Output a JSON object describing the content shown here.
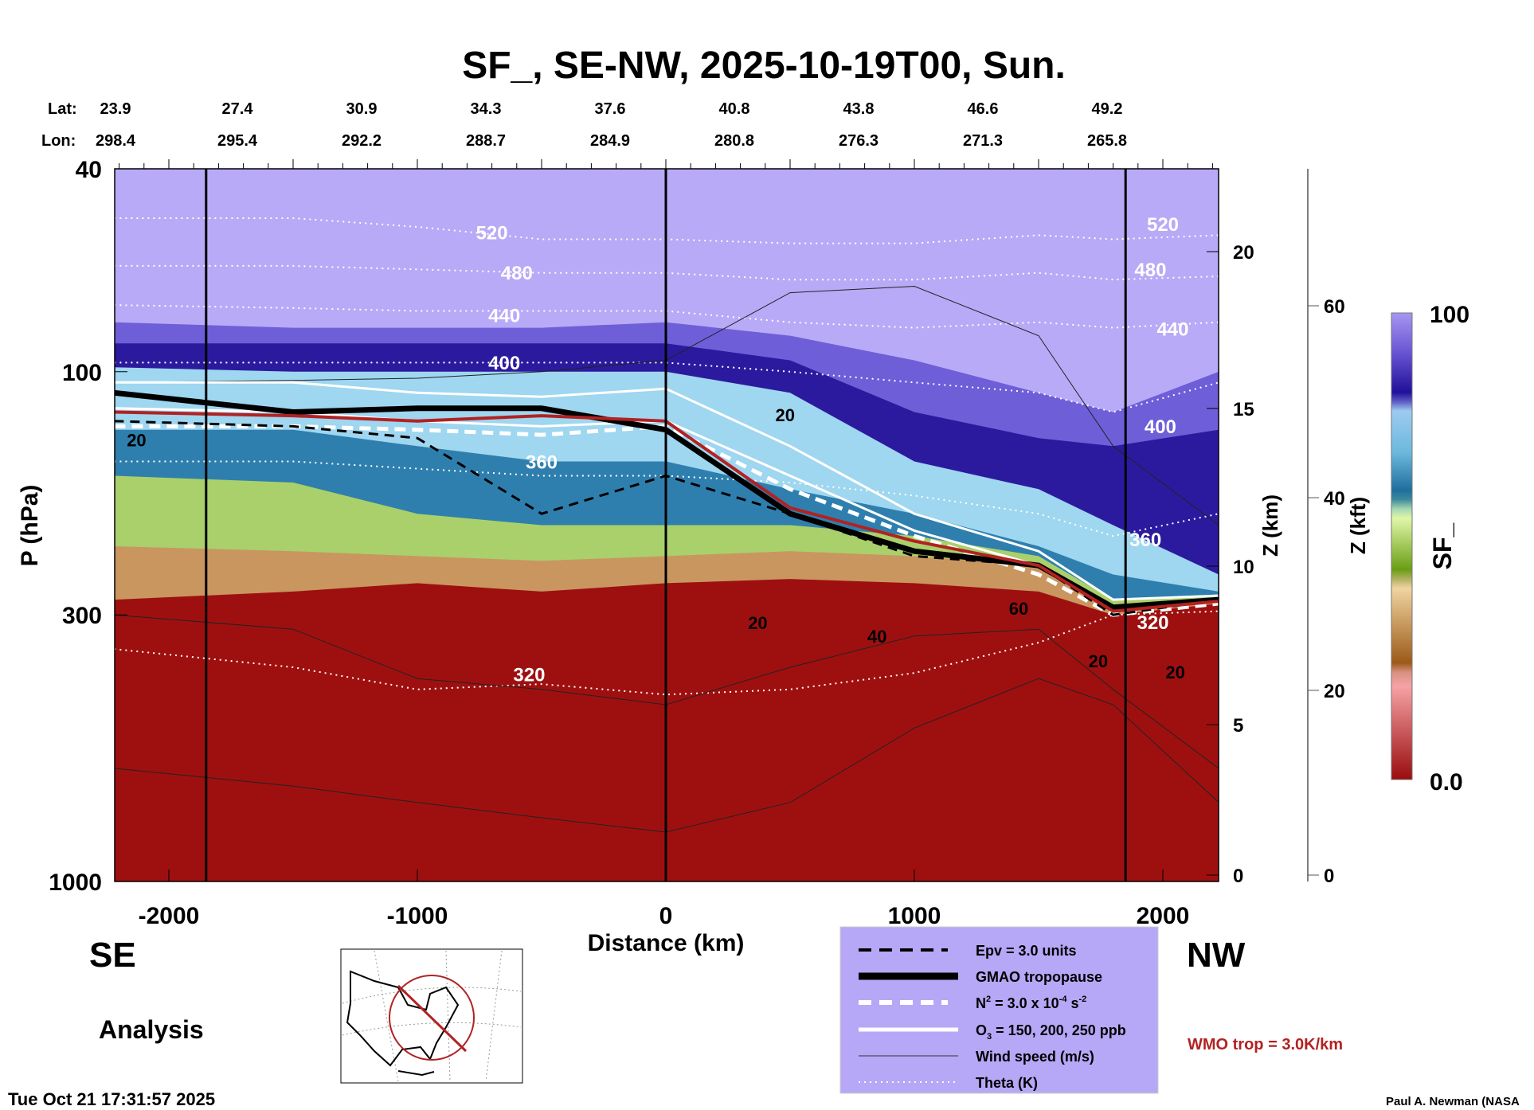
{
  "chart_data": {
    "type": "heatmap",
    "title": "SF_, SE-NW, 2025-10-19T00, Sun.",
    "xlabel": "Distance (km)",
    "ylabel": "P (hPa)",
    "y2label": "Z (km)",
    "y3label": "Z (kft)",
    "colorbar_label": "SF_",
    "colorbar_range": [
      "0.0",
      "100"
    ],
    "xlim": [
      -2220,
      2225
    ],
    "ylim": [
      1000,
      40
    ],
    "x_ticks": [
      "-2000",
      "-1000",
      "0",
      "1000",
      "2000"
    ],
    "x_tick_values": [
      -2000,
      -1000,
      0,
      1000,
      2000
    ],
    "p_ticks": [
      "40",
      "100",
      "300",
      "1000"
    ],
    "p_tick_values": [
      40,
      100,
      300,
      1000
    ],
    "zkm_ticks": [
      "0",
      "5",
      "10",
      "15",
      "20"
    ],
    "zkft_ticks": [
      "0",
      "20",
      "40",
      "60"
    ],
    "lat_label": "Lat:",
    "lon_label": "Lon:",
    "lat": [
      "23.9",
      "27.4",
      "30.9",
      "34.3",
      "37.6",
      "40.8",
      "43.8",
      "46.6",
      "49.2"
    ],
    "lon": [
      "298.4",
      "295.4",
      "292.2",
      "288.7",
      "284.9",
      "280.8",
      "276.3",
      "271.3",
      "265.8"
    ],
    "theta_labels": [
      "520",
      "480",
      "440",
      "400",
      "360",
      "320",
      "520",
      "480",
      "440",
      "400",
      "360",
      "320"
    ],
    "wind_labels": [
      "20",
      "20",
      "20",
      "40",
      "60",
      "20",
      "20"
    ],
    "colors": {
      "top": "#b8aaf6",
      "purple": "#6e5ed8",
      "darkblue": "#2c1a9e",
      "lightblue": "#9fd6f0",
      "teal": "#2f7fae",
      "green": "#a9d06b",
      "tan": "#c99660",
      "red": "#9e1010",
      "wmo": "#b22222"
    }
  },
  "labels": {
    "left_dir": "SE",
    "right_dir": "NW",
    "analysis": "Analysis",
    "timestamp": "Tue Oct 21 17:31:57 2025",
    "wmo": "WMO trop = 3.0K/km",
    "credit": "Paul A. Newman (NASA"
  },
  "legend": {
    "epv": "Epv = 3.0 units",
    "gmao": "GMAO tropopause",
    "n2_a": "N",
    "n2_b": "2",
    "n2_c": " = 3.0 x 10",
    "n2_d": "-4",
    "n2_e": " s",
    "n2_f": "-2",
    "o3_a": "O",
    "o3_b": "3",
    "o3_c": " = 150, 200, 250 ppb",
    "wind": "Wind speed (m/s)",
    "theta": "Theta (K)"
  }
}
